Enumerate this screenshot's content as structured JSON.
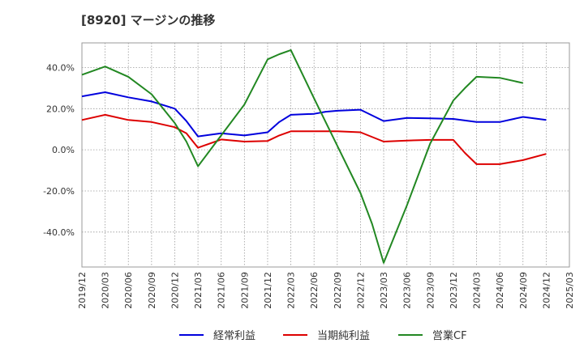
{
  "chart_data": {
    "type": "line",
    "title": "[8920]  マージンの推移",
    "x": [
      "2019/12",
      "2020/03",
      "2020/06",
      "2020/09",
      "2020/12",
      "2021/03",
      "2021/06",
      "2021/09",
      "2021/12",
      "2022/03",
      "2022/06",
      "2022/09",
      "2022/12",
      "2023/03",
      "2023/06",
      "2023/09",
      "2023/12",
      "2024/03",
      "2024/06",
      "2024/09",
      "2024/12",
      "2025/03"
    ],
    "ylim": [
      -57,
      52
    ],
    "yticks": [
      40,
      20,
      0,
      -20,
      -40
    ],
    "ytick_labels": [
      "40.0%",
      "20.0%",
      "0.0%",
      "-20.0%",
      "-40.0%"
    ],
    "grid": true,
    "legend_position": "bottom",
    "series": [
      {
        "name": "経常利益",
        "color": "#0000dd",
        "points": [
          [
            0,
            26
          ],
          [
            1,
            28
          ],
          [
            2,
            25.5
          ],
          [
            3,
            23.5
          ],
          [
            4,
            20
          ],
          [
            4.5,
            14
          ],
          [
            5,
            6.5
          ],
          [
            6,
            8
          ],
          [
            7,
            7
          ],
          [
            8,
            8.5
          ],
          [
            8.5,
            13.5
          ],
          [
            9,
            17
          ],
          [
            10,
            17.5
          ],
          [
            10.5,
            18.5
          ],
          [
            11,
            19
          ],
          [
            12,
            19.5
          ],
          [
            13,
            14
          ],
          [
            14,
            15.5
          ],
          [
            15,
            15.3
          ],
          [
            16,
            15
          ],
          [
            17,
            13.5
          ],
          [
            18,
            13.5
          ],
          [
            19,
            16
          ],
          [
            20,
            14.5
          ]
        ]
      },
      {
        "name": "当期純利益",
        "color": "#dd0000",
        "points": [
          [
            0,
            14.5
          ],
          [
            1,
            17
          ],
          [
            2,
            14.5
          ],
          [
            3,
            13.5
          ],
          [
            4,
            11
          ],
          [
            4.5,
            8
          ],
          [
            5,
            1
          ],
          [
            6,
            5
          ],
          [
            7,
            4
          ],
          [
            8,
            4.3
          ],
          [
            8.5,
            7
          ],
          [
            9,
            9
          ],
          [
            10,
            9
          ],
          [
            11,
            9
          ],
          [
            12,
            8.5
          ],
          [
            13,
            4
          ],
          [
            14,
            4.5
          ],
          [
            15,
            4.8
          ],
          [
            16,
            4.8
          ],
          [
            16.5,
            -1.5
          ],
          [
            17,
            -7
          ],
          [
            18,
            -7
          ],
          [
            19,
            -5
          ],
          [
            20,
            -2
          ]
        ]
      },
      {
        "name": "営業CF",
        "color": "#228822",
        "points": [
          [
            0,
            36.5
          ],
          [
            1,
            40.5
          ],
          [
            2,
            35.5
          ],
          [
            3,
            27
          ],
          [
            4,
            13
          ],
          [
            4.5,
            4
          ],
          [
            5,
            -8
          ],
          [
            6,
            7
          ],
          [
            7,
            22
          ],
          [
            8,
            44
          ],
          [
            8.5,
            46.5
          ],
          [
            9,
            48.5
          ],
          [
            10,
            25
          ],
          [
            11,
            2
          ],
          [
            12,
            -21
          ],
          [
            12.5,
            -36
          ],
          [
            13,
            -55
          ],
          [
            14,
            -27
          ],
          [
            15,
            3
          ],
          [
            16,
            24
          ],
          [
            16.5,
            30
          ],
          [
            17,
            35.5
          ],
          [
            18,
            35
          ],
          [
            19,
            32.5
          ]
        ]
      }
    ]
  }
}
